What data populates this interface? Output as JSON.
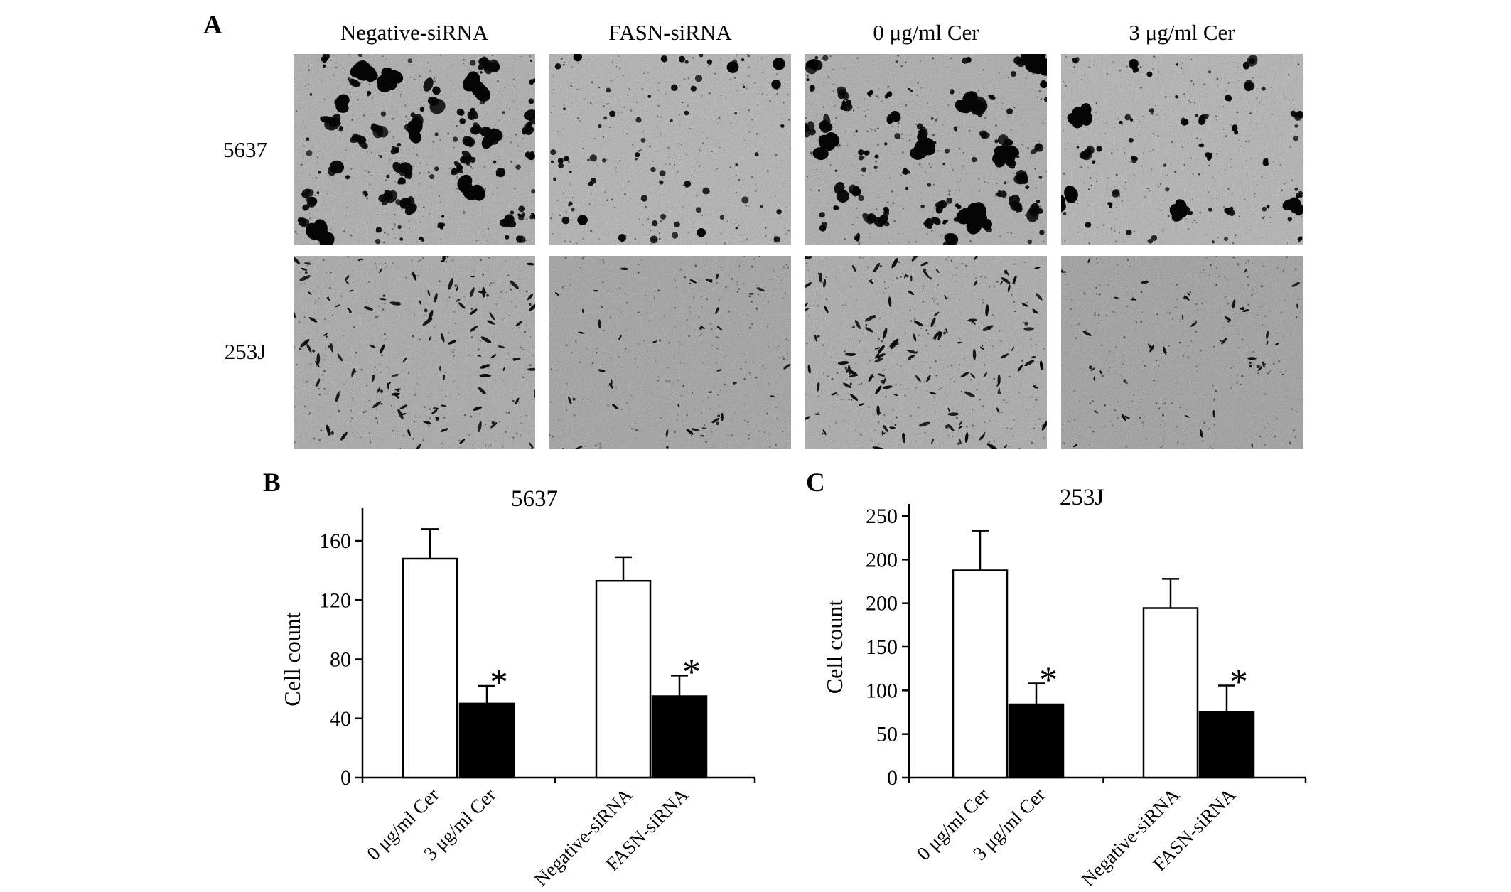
{
  "figure": {
    "panel_a": {
      "label": "A",
      "column_headers": [
        "Negative-siRNA",
        "FASN-siRNA",
        "0 μg/ml Cer",
        "3 μg/ml Cer"
      ],
      "row_labels": [
        "5637",
        "253J"
      ]
    },
    "panel_b": {
      "label": "B"
    },
    "panel_c": {
      "label": "C"
    }
  },
  "chart_data": [
    {
      "type": "bar",
      "panel": "B",
      "title": "5637",
      "xlabel": "",
      "ylabel": "Cell count",
      "categories": [
        "0 μg/ml Cer",
        "3 μg/ml Cer",
        "Negative-siRNA",
        "FASN-siRNA"
      ],
      "values": [
        148,
        50,
        133,
        55
      ],
      "errors": [
        20,
        12,
        16,
        14
      ],
      "bar_fills": [
        "#ffffff",
        "#000000",
        "#ffffff",
        "#000000"
      ],
      "significance": [
        "",
        "*",
        "",
        "*"
      ],
      "ytick_labels": [
        "0",
        "40",
        "80",
        "120",
        "160"
      ],
      "ymax_tick_value": 160,
      "ylim": [
        0,
        180
      ],
      "grid": false,
      "legend": "none"
    },
    {
      "type": "bar",
      "panel": "C",
      "title": "253J",
      "xlabel": "",
      "ylabel": "Cell count",
      "categories": [
        "0 μg/ml Cer",
        "3 μg/ml Cer",
        "Negative-siRNA",
        "FASN-siRNA"
      ],
      "values": [
        198,
        70,
        162,
        63
      ],
      "errors": [
        38,
        20,
        28,
        25
      ],
      "bar_fills": [
        "#ffffff",
        "#000000",
        "#ffffff",
        "#000000"
      ],
      "significance": [
        "",
        "*",
        "",
        "*"
      ],
      "ytick_labels": [
        "0",
        "50",
        "100",
        "150",
        "200",
        "200",
        "250"
      ],
      "ymax_tick_value": 250,
      "ylim": [
        0,
        275
      ],
      "grid": false,
      "legend": "none"
    }
  ]
}
